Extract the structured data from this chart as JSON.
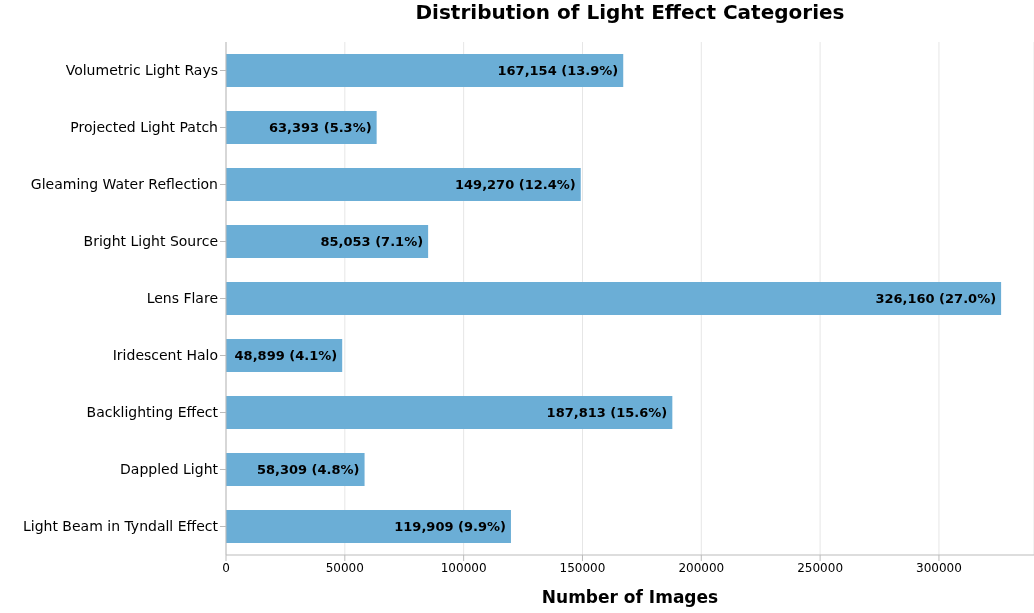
{
  "chart_data": {
    "type": "bar",
    "orientation": "horizontal",
    "title": "Distribution of Light Effect Categories",
    "xlabel": "Number of Images",
    "categories": [
      "Volumetric Light Rays",
      "Projected Light Patch",
      "Gleaming Water Reflection",
      "Bright Light Source",
      "Lens Flare",
      "Iridescent Halo",
      "Backlighting Effect",
      "Dappled Light",
      "Light Beam in Tyndall Effect"
    ],
    "values": [
      167154,
      63393,
      149270,
      85053,
      326160,
      48899,
      187813,
      58309,
      119909
    ],
    "value_labels": [
      "167,154 (13.9%)",
      "63,393 (5.3%)",
      "149,270 (12.4%)",
      "85,053 (7.1%)",
      "326,160 (27.0%)",
      "48,899 (4.1%)",
      "187,813 (15.6%)",
      "58,309 (4.8%)",
      "119,909 (9.9%)"
    ],
    "color": "#6baed6",
    "xlim": [
      0,
      340000
    ],
    "xticks": [
      0,
      50000,
      100000,
      150000,
      200000,
      250000,
      300000
    ],
    "grid": "x"
  }
}
